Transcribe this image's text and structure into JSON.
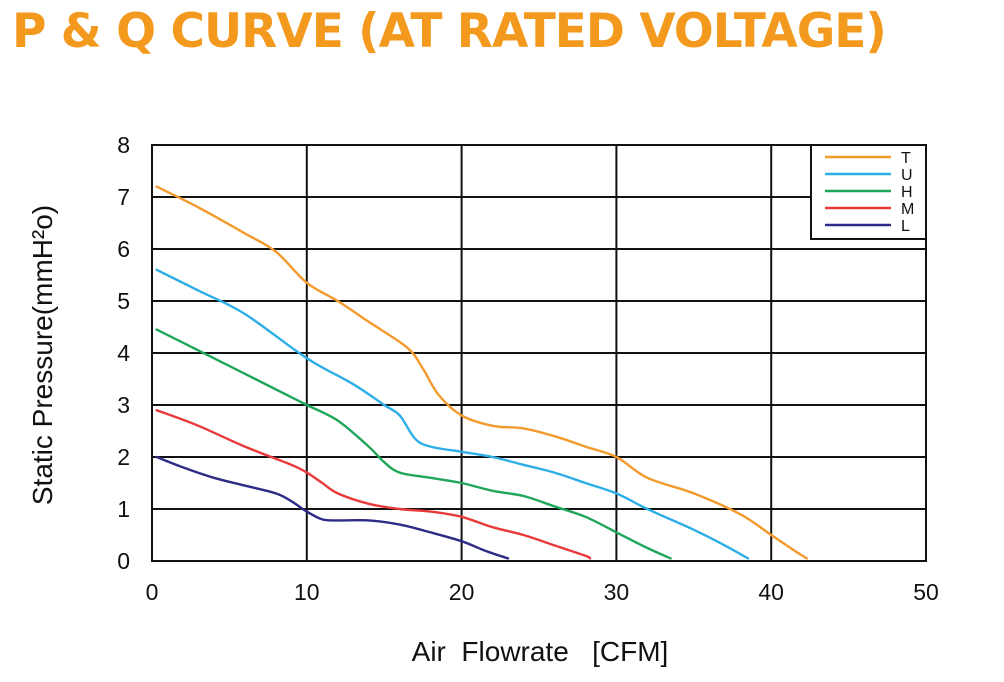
{
  "chart_data": {
    "type": "line",
    "title": "P & Q CURVE (AT RATED VOLTAGE)",
    "xlabel": "Air  Flowrate   [CFM]",
    "ylabel": "Static Pressure(mmH²o)",
    "xlim": [
      0,
      50
    ],
    "ylim": [
      0,
      8
    ],
    "xticks": [
      "0",
      "10",
      "20",
      "30",
      "40",
      "50"
    ],
    "yticks": [
      "0",
      "1",
      "2",
      "3",
      "4",
      "5",
      "6",
      "7",
      "8"
    ],
    "grid": true,
    "legend_position": "top-right",
    "series": [
      {
        "name": "T",
        "color": "#f39a2c",
        "points": [
          [
            0.3,
            7.2
          ],
          [
            3,
            6.8
          ],
          [
            6,
            6.3
          ],
          [
            8,
            5.95
          ],
          [
            10,
            5.35
          ],
          [
            12,
            5.0
          ],
          [
            14,
            4.6
          ],
          [
            16.5,
            4.1
          ],
          [
            17.5,
            3.7
          ],
          [
            18.5,
            3.2
          ],
          [
            20,
            2.8
          ],
          [
            22,
            2.6
          ],
          [
            24,
            2.55
          ],
          [
            26,
            2.4
          ],
          [
            28,
            2.2
          ],
          [
            30,
            2.0
          ],
          [
            32,
            1.6
          ],
          [
            35,
            1.3
          ],
          [
            38,
            0.9
          ],
          [
            40,
            0.5
          ],
          [
            41.5,
            0.2
          ],
          [
            42.3,
            0.05
          ]
        ]
      },
      {
        "name": "U",
        "color": "#2eaee6",
        "points": [
          [
            0.3,
            5.6
          ],
          [
            3,
            5.2
          ],
          [
            6,
            4.75
          ],
          [
            10,
            3.9
          ],
          [
            13,
            3.4
          ],
          [
            15,
            3.0
          ],
          [
            16,
            2.8
          ],
          [
            17,
            2.35
          ],
          [
            18,
            2.2
          ],
          [
            20,
            2.1
          ],
          [
            22,
            2.0
          ],
          [
            24,
            1.85
          ],
          [
            26,
            1.7
          ],
          [
            28,
            1.5
          ],
          [
            30,
            1.3
          ],
          [
            32,
            1.0
          ],
          [
            35,
            0.6
          ],
          [
            37,
            0.3
          ],
          [
            38.5,
            0.05
          ]
        ]
      },
      {
        "name": "H",
        "color": "#1fa65a",
        "points": [
          [
            0.3,
            4.45
          ],
          [
            3,
            4.05
          ],
          [
            6,
            3.6
          ],
          [
            9,
            3.15
          ],
          [
            10,
            3.0
          ],
          [
            12,
            2.7
          ],
          [
            14,
            2.2
          ],
          [
            15,
            1.9
          ],
          [
            16,
            1.7
          ],
          [
            18,
            1.6
          ],
          [
            20,
            1.5
          ],
          [
            22,
            1.35
          ],
          [
            24,
            1.25
          ],
          [
            26,
            1.05
          ],
          [
            28,
            0.85
          ],
          [
            30,
            0.55
          ],
          [
            32,
            0.25
          ],
          [
            33.5,
            0.05
          ]
        ]
      },
      {
        "name": "M",
        "color": "#e83a3a",
        "points": [
          [
            0.3,
            2.9
          ],
          [
            3,
            2.6
          ],
          [
            6,
            2.2
          ],
          [
            9,
            1.85
          ],
          [
            10,
            1.7
          ],
          [
            11,
            1.5
          ],
          [
            12,
            1.3
          ],
          [
            14,
            1.1
          ],
          [
            16,
            1.0
          ],
          [
            18,
            0.95
          ],
          [
            20,
            0.85
          ],
          [
            22,
            0.65
          ],
          [
            24,
            0.5
          ],
          [
            26,
            0.3
          ],
          [
            28,
            0.1
          ],
          [
            28.3,
            0.05
          ]
        ]
      },
      {
        "name": "L",
        "color": "#2d2b86",
        "points": [
          [
            0.3,
            2.0
          ],
          [
            2,
            1.8
          ],
          [
            4,
            1.6
          ],
          [
            6,
            1.45
          ],
          [
            8,
            1.3
          ],
          [
            9,
            1.15
          ],
          [
            10,
            0.95
          ],
          [
            11,
            0.8
          ],
          [
            12,
            0.78
          ],
          [
            14,
            0.78
          ],
          [
            16,
            0.7
          ],
          [
            18,
            0.55
          ],
          [
            20,
            0.38
          ],
          [
            21.5,
            0.2
          ],
          [
            23,
            0.05
          ]
        ]
      }
    ]
  }
}
